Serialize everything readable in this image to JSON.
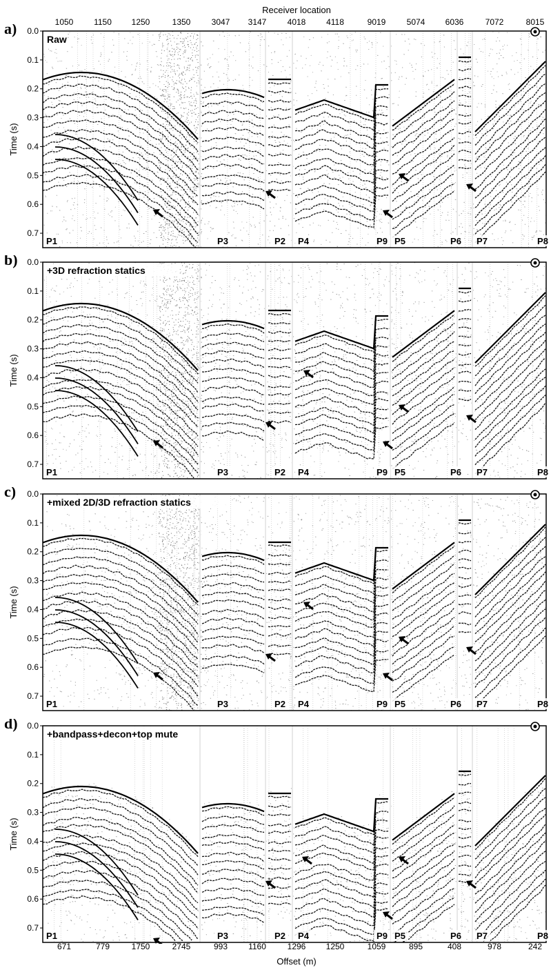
{
  "figure": {
    "top_axis_title": "Receiver location",
    "bottom_axis_title": "Offset (m)",
    "y_axis_title": "Time (s)",
    "receiver_locations": [
      "1050",
      "1150",
      "1250",
      "1350",
      "3047",
      "3147",
      "4018",
      "4118",
      "9019",
      "5074",
      "6036",
      "7072",
      "8015"
    ],
    "offsets": [
      "671",
      "779",
      "1750",
      "2745",
      "993",
      "1160",
      "1296",
      "1250",
      "1059",
      "895",
      "408",
      "978",
      "242"
    ],
    "time_ticks": [
      "0.0",
      "0.1",
      "0.2",
      "0.3",
      "0.4",
      "0.5",
      "0.6",
      "0.7"
    ],
    "profiles": [
      "P1",
      "P3",
      "P2",
      "P4",
      "P9",
      "P5",
      "P6",
      "P7",
      "P8"
    ]
  },
  "chart_data": [
    {
      "type": "seismic-gather",
      "letter": "a)",
      "title": "Raw",
      "y_axis": {
        "label": "Time (s)",
        "range": [
          0.0,
          0.75
        ]
      },
      "profiles": [
        "P1",
        "P3",
        "P2",
        "P4",
        "P9",
        "P5",
        "P6",
        "P7",
        "P8"
      ]
    },
    {
      "type": "seismic-gather",
      "letter": "b)",
      "title": "+3D refraction statics",
      "y_axis": {
        "label": "Time (s)",
        "range": [
          0.0,
          0.75
        ]
      },
      "profiles": [
        "P1",
        "P3",
        "P2",
        "P4",
        "P9",
        "P5",
        "P6",
        "P7",
        "P8"
      ]
    },
    {
      "type": "seismic-gather",
      "letter": "c)",
      "title": "+mixed 2D/3D refraction statics",
      "y_axis": {
        "label": "Time (s)",
        "range": [
          0.0,
          0.75
        ]
      },
      "profiles": [
        "P1",
        "P3",
        "P2",
        "P4",
        "P9",
        "P5",
        "P6",
        "P7",
        "P8"
      ]
    },
    {
      "type": "seismic-gather",
      "letter": "d)",
      "title": "+bandpass+decon+top mute",
      "y_axis": {
        "label": "Time (s)",
        "range": [
          0.0,
          0.75
        ]
      },
      "profiles": [
        "P1",
        "P3",
        "P2",
        "P4",
        "P9",
        "P5",
        "P6",
        "P7",
        "P8"
      ]
    }
  ]
}
